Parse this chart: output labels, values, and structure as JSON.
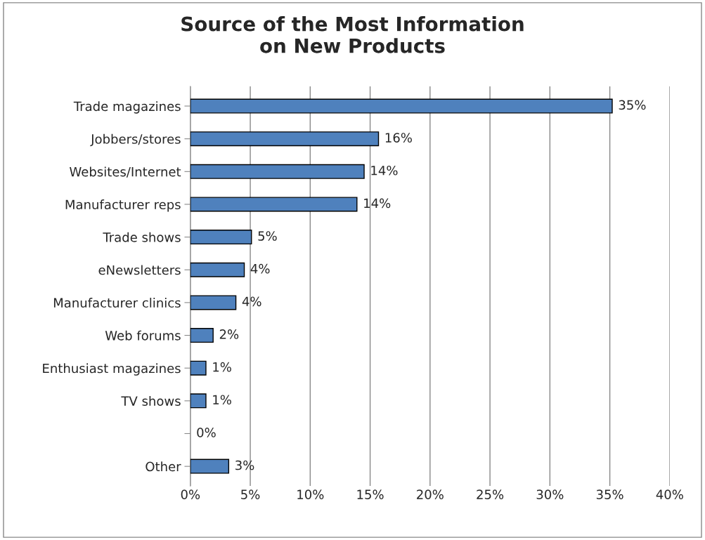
{
  "chart_data": {
    "type": "bar",
    "orientation": "horizontal",
    "title": "Source of the Most Information\non New Products",
    "categories": [
      "Trade magazines",
      "Jobbers/stores",
      "Websites/Internet",
      "Manufacturer reps",
      "Trade shows",
      "eNewsletters",
      "Manufacturer clinics",
      "Web forums",
      "Enthusiast magazines",
      "TV shows",
      null,
      "Other"
    ],
    "values": [
      35.2,
      15.7,
      14.5,
      13.9,
      5.1,
      4.5,
      3.8,
      1.9,
      1.3,
      1.3,
      0,
      3.2
    ],
    "value_labels": [
      "35%",
      "16%",
      "14%",
      "14%",
      "5%",
      "4%",
      "4%",
      "2%",
      "1%",
      "1%",
      "0%",
      "3%"
    ],
    "color": "#4f81bd",
    "xlim": [
      0,
      40
    ],
    "xticks": [
      {
        "value": 0,
        "label": "0%"
      },
      {
        "value": 5,
        "label": "5%"
      },
      {
        "value": 10,
        "label": "10%"
      },
      {
        "value": 15,
        "label": "15%"
      },
      {
        "value": 20,
        "label": "20%"
      },
      {
        "value": 25,
        "label": "25%"
      },
      {
        "value": 30,
        "label": "30%"
      },
      {
        "value": 35,
        "label": "35%"
      },
      {
        "value": 40,
        "label": "40%"
      }
    ],
    "grid": "x",
    "legend": false
  }
}
